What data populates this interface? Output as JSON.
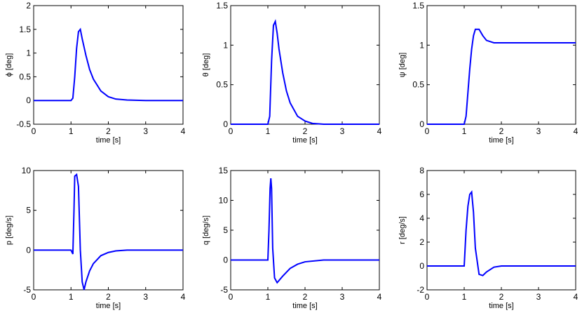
{
  "chart_data": [
    {
      "type": "line",
      "xlabel": "time [s]",
      "ylabel": "ϕ [deg]",
      "xlim": [
        0,
        4
      ],
      "xticks": [
        0,
        1,
        2,
        3,
        4
      ],
      "ylim": [
        -0.5,
        2
      ],
      "yticks": [
        -0.5,
        0,
        0.5,
        1,
        1.5,
        2
      ],
      "x": [
        0,
        1,
        1.05,
        1.1,
        1.15,
        1.2,
        1.25,
        1.3,
        1.4,
        1.5,
        1.6,
        1.8,
        2,
        2.2,
        2.5,
        3,
        4
      ],
      "series": [
        {
          "color": "#0000ff",
          "values": [
            0,
            0,
            0.05,
            0.5,
            1.1,
            1.45,
            1.5,
            1.3,
            0.95,
            0.65,
            0.45,
            0.2,
            0.08,
            0.03,
            0.01,
            0,
            0
          ]
        }
      ]
    },
    {
      "type": "line",
      "xlabel": "time [s]",
      "ylabel": "θ [deg]",
      "xlim": [
        0,
        4
      ],
      "xticks": [
        0,
        1,
        2,
        3,
        4
      ],
      "ylim": [
        0,
        1.5
      ],
      "yticks": [
        0,
        0.5,
        1,
        1.5
      ],
      "x": [
        0,
        1,
        1.05,
        1.1,
        1.15,
        1.2,
        1.25,
        1.3,
        1.4,
        1.5,
        1.6,
        1.8,
        2,
        2.2,
        2.5,
        3,
        4
      ],
      "series": [
        {
          "color": "#0000ff",
          "values": [
            0,
            0,
            0.1,
            0.8,
            1.25,
            1.3,
            1.15,
            0.95,
            0.65,
            0.42,
            0.27,
            0.1,
            0.04,
            0.01,
            0,
            0,
            0
          ]
        }
      ]
    },
    {
      "type": "line",
      "xlabel": "time [s]",
      "ylabel": "ψ [deg]",
      "xlim": [
        0,
        4
      ],
      "xticks": [
        0,
        1,
        2,
        3,
        4
      ],
      "ylim": [
        0,
        1.5
      ],
      "yticks": [
        0,
        0.5,
        1,
        1.5
      ],
      "x": [
        0,
        1,
        1.05,
        1.1,
        1.15,
        1.2,
        1.25,
        1.3,
        1.4,
        1.5,
        1.6,
        1.8,
        2,
        2.2,
        2.5,
        3,
        4
      ],
      "series": [
        {
          "color": "#0000ff",
          "values": [
            0,
            0,
            0.1,
            0.4,
            0.7,
            0.95,
            1.12,
            1.2,
            1.2,
            1.12,
            1.06,
            1.03,
            1.03,
            1.03,
            1.03,
            1.03,
            1.03
          ]
        }
      ]
    },
    {
      "type": "line",
      "xlabel": "time [s]",
      "ylabel": "p [deg/s]",
      "xlim": [
        0,
        4
      ],
      "xticks": [
        0,
        1,
        2,
        3,
        4
      ],
      "ylim": [
        -5,
        10
      ],
      "yticks": [
        -5,
        0,
        5,
        10
      ],
      "x": [
        0,
        1,
        1.05,
        1.08,
        1.1,
        1.15,
        1.2,
        1.25,
        1.3,
        1.35,
        1.4,
        1.5,
        1.6,
        1.8,
        2,
        2.2,
        2.5,
        3,
        4
      ],
      "series": [
        {
          "color": "#0000ff",
          "values": [
            0,
            0,
            -0.5,
            5,
            9.3,
            9.5,
            8,
            0,
            -4,
            -5,
            -4,
            -2.6,
            -1.7,
            -0.7,
            -0.3,
            -0.1,
            0,
            0,
            0
          ]
        }
      ]
    },
    {
      "type": "line",
      "xlabel": "time [s]",
      "ylabel": "q [deg/s]",
      "xlim": [
        0,
        4
      ],
      "xticks": [
        0,
        1,
        2,
        3,
        4
      ],
      "ylim": [
        -5,
        15
      ],
      "yticks": [
        -5,
        0,
        5,
        10,
        15
      ],
      "x": [
        0,
        1,
        1.03,
        1.06,
        1.08,
        1.1,
        1.13,
        1.18,
        1.25,
        1.4,
        1.6,
        1.8,
        2,
        2.5,
        3,
        4
      ],
      "series": [
        {
          "color": "#0000ff",
          "values": [
            0,
            0,
            5,
            12,
            13.7,
            12,
            2,
            -3,
            -3.8,
            -2.7,
            -1.4,
            -0.7,
            -0.3,
            0,
            0,
            0
          ]
        }
      ]
    },
    {
      "type": "line",
      "xlabel": "time [s]",
      "ylabel": "r [deg/s]",
      "xlim": [
        0,
        4
      ],
      "xticks": [
        0,
        1,
        2,
        3,
        4
      ],
      "ylim": [
        -2,
        8
      ],
      "yticks": [
        -2,
        0,
        2,
        4,
        6,
        8
      ],
      "x": [
        0,
        1,
        1.05,
        1.1,
        1.15,
        1.2,
        1.25,
        1.3,
        1.4,
        1.5,
        1.6,
        1.8,
        2,
        2.5,
        3,
        4
      ],
      "series": [
        {
          "color": "#0000ff",
          "values": [
            0,
            0,
            3,
            5,
            6,
            6.2,
            4.5,
            1.5,
            -0.7,
            -0.8,
            -0.5,
            -0.1,
            0,
            0,
            0,
            0
          ]
        }
      ]
    }
  ]
}
